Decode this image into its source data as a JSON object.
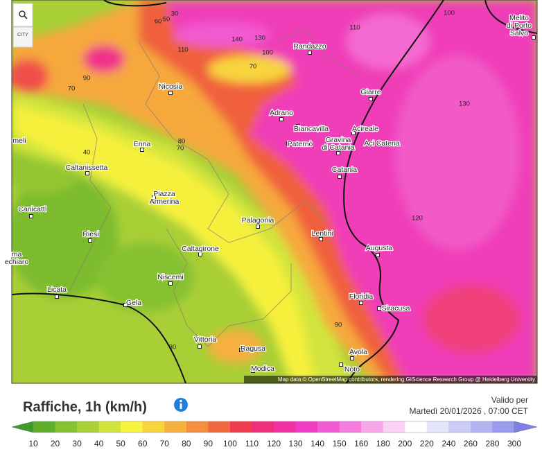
{
  "map": {
    "city_button": "CITY",
    "cities": [
      [
        "Melito",
        "di Porto",
        "Salvo"
      ],
      [
        "Randazzo"
      ],
      [
        "Nicosia"
      ],
      [
        "Giarre"
      ],
      [
        "Adrano"
      ],
      [
        "Biancavilla"
      ],
      [
        "Acireale"
      ],
      [
        "Gravina",
        "di Catania"
      ],
      [
        "Aci Catena"
      ],
      [
        "Paternò"
      ],
      [
        "Enna"
      ],
      [
        "Catania"
      ],
      [
        "Caltanissetta"
      ],
      [
        "Piazza",
        "Armerina"
      ],
      [
        "Canicattì"
      ],
      [
        "Palagonia"
      ],
      [
        "Riesi"
      ],
      [
        "Lentini"
      ],
      [
        "Augusta"
      ],
      [
        "Caltagirone"
      ],
      [
        "Niscemi"
      ],
      [
        "Licata"
      ],
      [
        "Floridia"
      ],
      [
        "Gela"
      ],
      [
        "Siracusa"
      ],
      [
        "Vittoria"
      ],
      [
        "Ragusa"
      ],
      [
        "Avola"
      ],
      [
        "Modica"
      ],
      [
        "Noto"
      ],
      [
        "meli"
      ],
      [
        "ma",
        "echiaro"
      ]
    ],
    "contour_labels": [
      50,
      30,
      60,
      140,
      130,
      100,
      110,
      110,
      100,
      70,
      90,
      70,
      130,
      40,
      80,
      70,
      120,
      90,
      30
    ],
    "attribution": "Map data © OpenStreetMap contributors, rendering GIScience Research Group @ Heidelberg University"
  },
  "footer": {
    "title": "Raffiche, 1h (km/h)",
    "valid_label": "Valido per",
    "valid_date": "Martedì 20/01/2026 , 07:00 CET"
  },
  "legend": {
    "ticks": [
      10,
      20,
      30,
      40,
      50,
      60,
      70,
      80,
      90,
      100,
      110,
      120,
      130,
      140,
      150,
      160,
      180,
      200,
      220,
      240,
      260,
      280,
      300
    ],
    "colors": [
      "#3f9a2a",
      "#5fae2c",
      "#86c130",
      "#aad236",
      "#d2e43c",
      "#f6f43c",
      "#f8d43c",
      "#f6b03e",
      "#f3903e",
      "#f0683e",
      "#ee3c4e",
      "#ee2e78",
      "#ef30a2",
      "#f03cc2",
      "#f25ad2",
      "#f57ee0",
      "#f8a8ea",
      "#fbd2f4",
      "#ffffff",
      "#e4e4fa",
      "#ccccf6",
      "#b4b4f2",
      "#9a9aee",
      "#7f7fea"
    ]
  }
}
